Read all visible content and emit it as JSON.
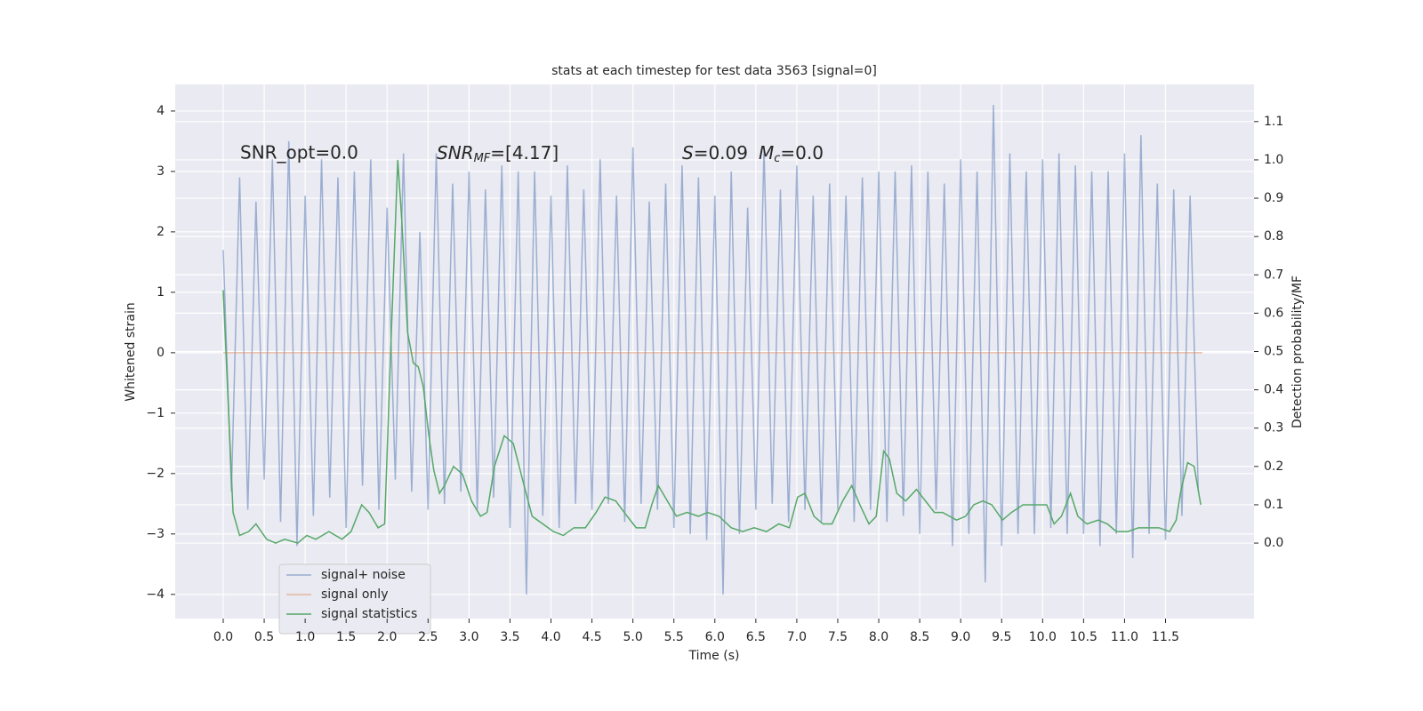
{
  "chart_data": {
    "type": "line",
    "title": "stats at each timestep for test data 3563 [signal=0]",
    "xlabel": "Time (s)",
    "ylabel": "Whitened strain",
    "y2label": "Detection probability/MF",
    "annotations": {
      "snr_opt": "SNR_opt=0.0",
      "snr_mf": [
        "SNR",
        "MF",
        "=[4.17]"
      ],
      "s_mc": [
        "S",
        "=0.09",
        "M",
        "c",
        "=0.0"
      ]
    },
    "xlim": [
      -0.586,
      12.58
    ],
    "ylim": [
      -4.4,
      4.44
    ],
    "y2lim": [
      -0.197,
      1.197
    ],
    "xticks": [
      {
        "value": 0,
        "label": "0.0"
      },
      0.5,
      {
        "value": 1,
        "label": "1.0"
      },
      1.5,
      {
        "value": 2,
        "label": "2.0"
      },
      2.5,
      {
        "value": 3,
        "label": "3.0"
      },
      3.5,
      {
        "value": 4,
        "label": "4.0"
      },
      4.5,
      {
        "value": 5,
        "label": "5.0"
      },
      5.5,
      {
        "value": 6,
        "label": "6.0"
      },
      6.5,
      {
        "value": 7,
        "label": "7.0"
      },
      7.5,
      {
        "value": 8,
        "label": "8.0"
      },
      8.5,
      {
        "value": 9,
        "label": "9.0"
      },
      9.5,
      {
        "value": 10,
        "label": "10.0"
      },
      10.5,
      {
        "value": 11,
        "label": "11.0"
      },
      11.5
    ],
    "yticks": [
      {
        "value": -4,
        "label": "−4"
      },
      {
        "value": -3,
        "label": "−3"
      },
      {
        "value": -2,
        "label": "−2"
      },
      {
        "value": -1,
        "label": "−1"
      },
      0,
      1,
      2,
      3,
      4
    ],
    "y2ticks": [
      {
        "value": 0,
        "label": "0.0"
      },
      0.1,
      0.2,
      0.3,
      0.4,
      0.5,
      0.6,
      0.7,
      0.8,
      0.9,
      {
        "value": 1,
        "label": "1.0"
      },
      1.1
    ],
    "grid": true,
    "legend": "lower left",
    "series": [
      {
        "name": "signal+ noise",
        "color": "#4c72b0",
        "opacity": 0.5,
        "x": [
          0,
          0.1,
          0.2,
          0.3,
          0.4,
          0.5,
          0.6,
          0.7,
          0.8,
          0.9,
          1,
          1.1,
          1.2,
          1.3,
          1.4,
          1.5,
          1.6,
          1.7,
          1.8,
          1.9,
          2,
          2.1,
          2.2,
          2.3,
          2.4,
          2.5,
          2.6,
          2.7,
          2.8,
          2.9,
          3,
          3.1,
          3.2,
          3.3,
          3.4,
          3.5,
          3.6,
          3.7,
          3.8,
          3.9,
          4,
          4.1,
          4.2,
          4.3,
          4.4,
          4.5,
          4.6,
          4.7,
          4.8,
          4.9,
          5,
          5.1,
          5.2,
          5.3,
          5.4,
          5.5,
          5.6,
          5.7,
          5.8,
          5.9,
          6,
          6.1,
          6.2,
          6.3,
          6.4,
          6.5,
          6.6,
          6.7,
          6.8,
          6.9,
          7,
          7.1,
          7.2,
          7.3,
          7.4,
          7.5,
          7.6,
          7.7,
          7.8,
          7.9,
          8,
          8.1,
          8.2,
          8.3,
          8.4,
          8.5,
          8.6,
          8.7,
          8.8,
          8.9,
          9,
          9.1,
          9.2,
          9.3,
          9.4,
          9.5,
          9.6,
          9.7,
          9.8,
          9.9,
          10,
          10.1,
          10.2,
          10.3,
          10.4,
          10.5,
          10.6,
          10.7,
          10.8,
          10.9,
          11,
          11.1,
          11.2,
          11.3,
          11.4,
          11.5,
          11.6,
          11.7,
          11.8,
          11.9
        ],
        "values": [
          1.7,
          -2.3,
          2.9,
          -2.6,
          2.5,
          -2.1,
          3.2,
          -2.8,
          3.5,
          -3.2,
          2.6,
          -2.7,
          3.2,
          -2.4,
          2.9,
          -2.9,
          3.0,
          -2.2,
          3.2,
          -2.6,
          2.4,
          -2.1,
          3.3,
          -2.3,
          2.0,
          -2.6,
          3.3,
          -2.5,
          2.8,
          -2.3,
          3.0,
          -2.6,
          2.7,
          -2.4,
          3.1,
          -2.9,
          3.0,
          -4.0,
          3.0,
          -2.7,
          2.6,
          -2.9,
          3.1,
          -2.5,
          2.7,
          -2.6,
          3.2,
          -2.5,
          2.6,
          -2.8,
          3.4,
          -2.5,
          2.5,
          -2.6,
          2.8,
          -2.9,
          3.1,
          -3.0,
          2.9,
          -3.1,
          2.6,
          -4.0,
          3.0,
          -3.0,
          2.4,
          -2.6,
          3.4,
          -2.5,
          2.7,
          -2.8,
          3.1,
          -2.6,
          2.6,
          -2.8,
          2.8,
          -2.6,
          2.6,
          -2.8,
          2.9,
          -2.6,
          3.0,
          -2.8,
          3.0,
          -2.7,
          3.1,
          -3.0,
          3.0,
          -2.6,
          2.8,
          -3.2,
          3.2,
          -3.0,
          3.0,
          -3.8,
          4.1,
          -3.2,
          3.3,
          -3.0,
          3.0,
          -3.0,
          3.2,
          -2.9,
          3.3,
          -3.0,
          3.1,
          -3.0,
          3.0,
          -3.2,
          3.0,
          -3.0,
          3.3,
          -3.4,
          3.6,
          -3.0,
          2.8,
          -3.1,
          2.7,
          -2.7,
          2.6,
          -2.3
        ]
      },
      {
        "name": "signal only",
        "color": "#dd8452",
        "opacity": 0.5,
        "x": [
          0,
          11.95
        ],
        "values": [
          0,
          0
        ]
      },
      {
        "name": "signal statistics",
        "color": "#55a868",
        "axis": "y2",
        "x": [
          0,
          0.12,
          0.2,
          0.31,
          0.4,
          0.53,
          0.64,
          0.75,
          0.91,
          1.02,
          1.13,
          1.29,
          1.45,
          1.56,
          1.69,
          1.78,
          1.89,
          1.97,
          2.05,
          2.13,
          2.18,
          2.25,
          2.32,
          2.38,
          2.44,
          2.51,
          2.57,
          2.64,
          2.7,
          2.81,
          2.92,
          3.03,
          3.14,
          3.22,
          3.31,
          3.43,
          3.54,
          3.66,
          3.77,
          3.9,
          4.03,
          4.15,
          4.28,
          4.42,
          4.55,
          4.66,
          4.79,
          4.93,
          5.04,
          5.15,
          5.23,
          5.31,
          5.42,
          5.53,
          5.66,
          5.8,
          5.91,
          6.05,
          6.2,
          6.34,
          6.48,
          6.63,
          6.78,
          6.91,
          7.01,
          7.1,
          7.21,
          7.32,
          7.43,
          7.56,
          7.67,
          7.77,
          7.88,
          7.97,
          8.06,
          8.13,
          8.22,
          8.33,
          8.46,
          8.57,
          8.68,
          8.78,
          8.95,
          9.06,
          9.16,
          9.27,
          9.38,
          9.51,
          9.62,
          9.76,
          9.92,
          10.05,
          10.14,
          10.23,
          10.34,
          10.43,
          10.54,
          10.68,
          10.79,
          10.9,
          11.04,
          11.17,
          11.31,
          11.42,
          11.55,
          11.63,
          11.69,
          11.77,
          11.85,
          11.93
        ],
        "values": [
          0.66,
          0.08,
          0.02,
          0.03,
          0.05,
          0.01,
          0.0,
          0.01,
          0.0,
          0.02,
          0.01,
          0.03,
          0.01,
          0.03,
          0.1,
          0.08,
          0.04,
          0.05,
          0.54,
          1.0,
          0.84,
          0.55,
          0.47,
          0.46,
          0.41,
          0.28,
          0.19,
          0.13,
          0.15,
          0.2,
          0.18,
          0.11,
          0.07,
          0.08,
          0.2,
          0.28,
          0.26,
          0.16,
          0.07,
          0.05,
          0.03,
          0.02,
          0.04,
          0.04,
          0.08,
          0.12,
          0.11,
          0.07,
          0.04,
          0.04,
          0.1,
          0.15,
          0.11,
          0.07,
          0.08,
          0.07,
          0.08,
          0.07,
          0.04,
          0.03,
          0.04,
          0.03,
          0.05,
          0.04,
          0.12,
          0.13,
          0.07,
          0.05,
          0.05,
          0.11,
          0.15,
          0.1,
          0.05,
          0.07,
          0.24,
          0.22,
          0.13,
          0.11,
          0.14,
          0.11,
          0.08,
          0.08,
          0.06,
          0.07,
          0.1,
          0.11,
          0.1,
          0.06,
          0.08,
          0.1,
          0.1,
          0.1,
          0.05,
          0.07,
          0.13,
          0.07,
          0.05,
          0.06,
          0.05,
          0.03,
          0.03,
          0.04,
          0.04,
          0.04,
          0.03,
          0.06,
          0.14,
          0.21,
          0.2,
          0.1
        ]
      }
    ]
  }
}
